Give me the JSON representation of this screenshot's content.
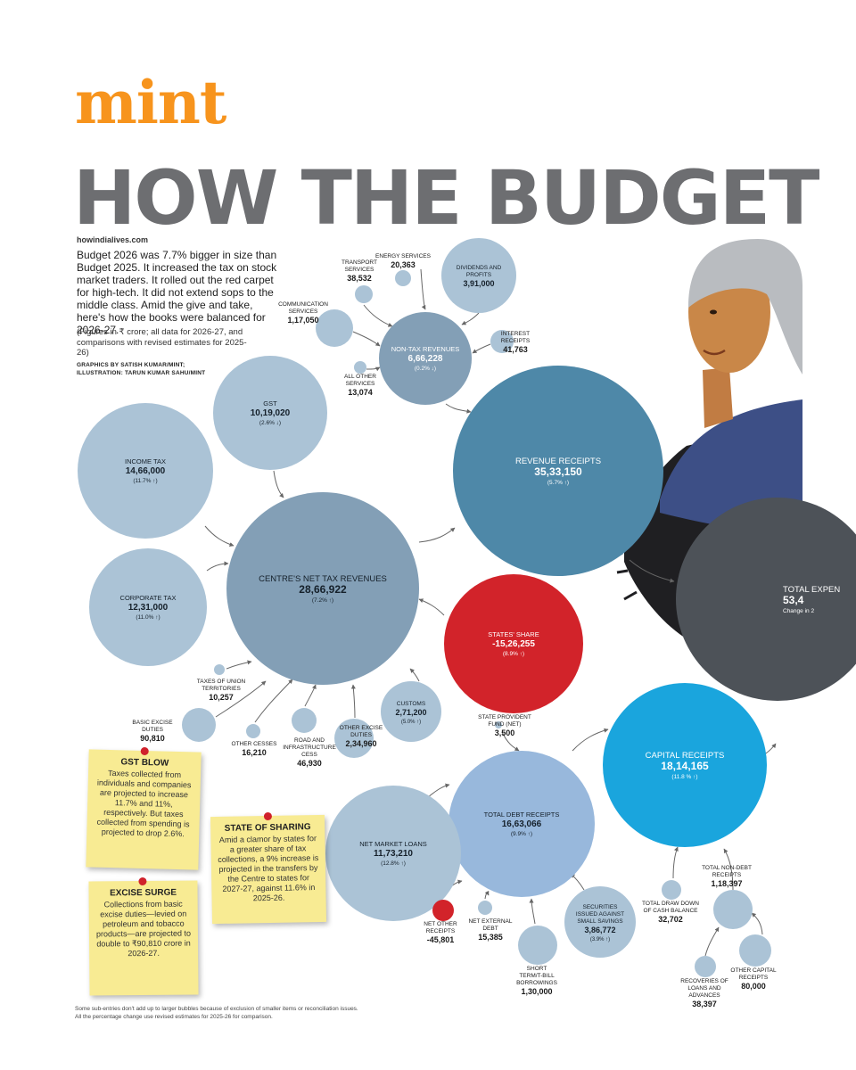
{
  "header": {
    "logo": "mint",
    "headline": "HOW THE BUDGET",
    "site": "howindialives.com",
    "intro": "Budget 2026 was 7.7% bigger in size than Budget 2025. It increased the tax on stock market traders. It rolled out the red carpet for high-tech. It did not extend sops to the middle class. Amid the give and take, here's how the books were balanced for 2026-27.",
    "figures_note": "(Figures in ₹ crore; all data for 2026-27, and comparisons with revised estimates for 2025-26)",
    "graphics_credit": "GRAPHICS BY SATISH KUMAR/MINT;",
    "illustration_credit": "ILLUSTRATION: TARUN KUMAR SAHU/MINT"
  },
  "colors": {
    "brand_orange": "#f7941d",
    "headline_gray": "#6d6e71",
    "light_blue": "#abc3d6",
    "mid_blue": "#839fb6",
    "revenue_blue": "#4e88a8",
    "states_red": "#d2232a",
    "capital_cyan": "#1aa5dd",
    "debt_blue": "#98b8dc",
    "expenditure_dark": "#4d5258",
    "note_yellow": "#f8eb93"
  },
  "notes": [
    {
      "title": "GST BLOW",
      "body": "Taxes collected from individuals and companies are projected to increase 11.7% and 11%, respectively. But taxes collected from spending is projected to drop 2.6%."
    },
    {
      "title": "STATE OF SHARING",
      "body": "Amid a clamor by states for a greater share of tax collections, a 9% increase is projected in the transfers by the Centre to states for 2027-27, against 11.6% in 2025-26."
    },
    {
      "title": "EXCISE SURGE",
      "body": "Collections from basic excise duties—levied on petroleum and tobacco products—are projected to double to ₹90,810 crore in 2026-27."
    }
  ],
  "footnote": [
    "Some sub-entries don't add up to larger bubbles because of exclusion of smaller items or reconciliation issues.",
    "All the percentage change use revised estimates for 2025-26 for comparison."
  ],
  "chart_data": {
    "type": "bubble-flow",
    "unit": "₹ crore",
    "nodes": [
      {
        "id": "total_expenditure",
        "label": "TOTAL EXPEN",
        "value": "53,4",
        "change": "Change in 2"
      },
      {
        "id": "revenue_receipts",
        "label": "REVENUE RECEIPTS",
        "value": "35,33,150",
        "change": "(5.7% ↑)"
      },
      {
        "id": "net_tax",
        "label": "CENTRE'S NET TAX REVENUES",
        "value": "28,66,922",
        "change": "(7.2% ↑)"
      },
      {
        "id": "non_tax",
        "label": "NON-TAX REVENUES",
        "value": "6,66,228",
        "change": "(0.2% ↓)"
      },
      {
        "id": "income_tax",
        "label": "INCOME TAX",
        "value": "14,66,000",
        "change": "(11.7% ↑)"
      },
      {
        "id": "gst",
        "label": "GST",
        "value": "10,19,020",
        "change": "(2.6% ↓)"
      },
      {
        "id": "corporate_tax",
        "label": "CORPORATE TAX",
        "value": "12,31,000",
        "change": "(11.0% ↑)"
      },
      {
        "id": "states_share",
        "label": "STATES' SHARE",
        "value": "-15,26,255",
        "change": "(8.9% ↑)"
      },
      {
        "id": "customs",
        "label": "CUSTOMS",
        "value": "2,71,200",
        "change": "(5.0% ↑)"
      },
      {
        "id": "other_excise",
        "label": "OTHER EXCISE DUTIES",
        "value": "2,34,960",
        "change": ""
      },
      {
        "id": "road_cess",
        "label": "ROAD AND INFRASTRUCTURE CESS",
        "value": "46,930",
        "change": ""
      },
      {
        "id": "other_cesses",
        "label": "OTHER CESSES",
        "value": "16,210",
        "change": ""
      },
      {
        "id": "basic_excise",
        "label": "BASIC EXCISE DUTIES",
        "value": "90,810",
        "change": ""
      },
      {
        "id": "taxes_ut",
        "label": "TAXES OF UNION TERRITORIES",
        "value": "10,257",
        "change": ""
      },
      {
        "id": "energy",
        "label": "ENERGY SERVICES",
        "value": "20,363",
        "change": ""
      },
      {
        "id": "transport",
        "label": "TRANSPORT SERVICES",
        "value": "38,532",
        "change": ""
      },
      {
        "id": "dividends",
        "label": "DIVIDENDS AND PROFITS",
        "value": "3,91,000",
        "change": ""
      },
      {
        "id": "communication",
        "label": "COMMUNICATION SERVICES",
        "value": "1,17,050",
        "change": ""
      },
      {
        "id": "interest",
        "label": "INTEREST RECEIPTS",
        "value": "41,763",
        "change": ""
      },
      {
        "id": "other_services",
        "label": "ALL OTHER SERVICES",
        "value": "13,074",
        "change": ""
      },
      {
        "id": "capital_receipts",
        "label": "CAPITAL RECEIPTS",
        "value": "18,14,165",
        "change": "(11.8 % ↑)"
      },
      {
        "id": "total_debt",
        "label": "TOTAL DEBT RECEIPTS",
        "value": "16,63,066",
        "change": "(9.9% ↑)"
      },
      {
        "id": "net_market_loans",
        "label": "NET MARKET LOANS",
        "value": "11,73,210",
        "change": "(12.8% ↑)"
      },
      {
        "id": "spf",
        "label": "STATE PROVIDENT FUND (NET)",
        "value": "3,500",
        "change": ""
      },
      {
        "id": "net_other",
        "label": "NET OTHER RECEIPTS",
        "value": "-45,801",
        "change": ""
      },
      {
        "id": "net_external",
        "label": "NET EXTERNAL DEBT",
        "value": "15,385",
        "change": ""
      },
      {
        "id": "short_term",
        "label": "SHORT TERM/T-BILL BORROWINGS",
        "value": "1,30,000",
        "change": ""
      },
      {
        "id": "securities",
        "label": "SECURITIES ISSUED AGAINST SMALL SAVINGS",
        "value": "3,86,772",
        "change": "(3.9% ↑)"
      },
      {
        "id": "drawdown",
        "label": "TOTAL DRAW DOWN OF CASH BALANCE",
        "value": "32,702",
        "change": ""
      },
      {
        "id": "non_debt",
        "label": "TOTAL NON-DEBT RECEIPTS",
        "value": "1,18,397",
        "change": ""
      },
      {
        "id": "recoveries",
        "label": "RECOVERIES OF LOANS AND ADVANCES",
        "value": "38,397",
        "change": ""
      },
      {
        "id": "other_capital",
        "label": "OTHER CAPITAL RECEIPTS",
        "value": "80,000",
        "change": ""
      }
    ]
  }
}
